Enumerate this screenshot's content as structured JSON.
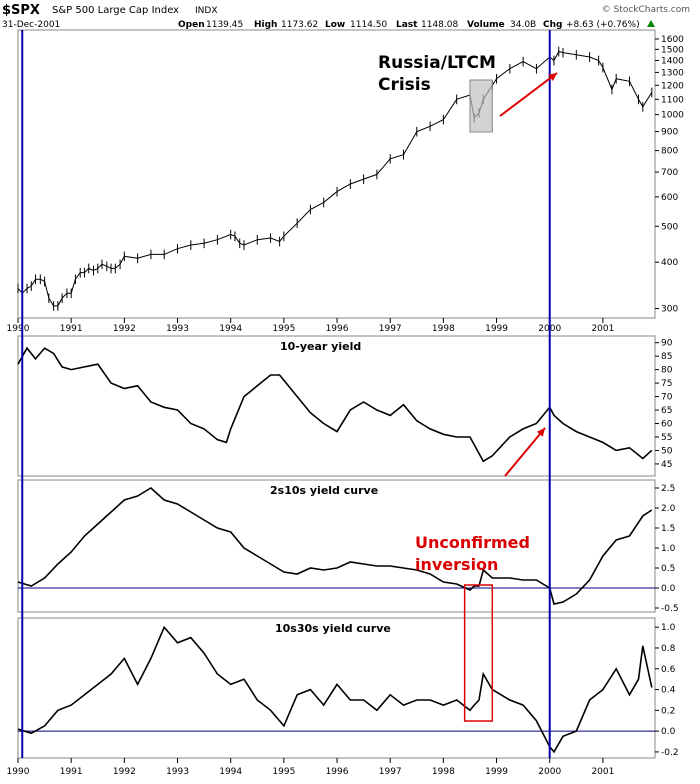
{
  "header": {
    "symbol": "$SPX",
    "name": "S&P 500 Large Cap Index",
    "exchange": "INDX",
    "date": "31-Dec-2001",
    "open_label": "Open",
    "open": "1139.45",
    "high_label": "High",
    "high": "1173.62",
    "low_label": "Low",
    "low": "1114.50",
    "last_label": "Last",
    "last": "1148.08",
    "volume_label": "Volume",
    "volume": "34.0B",
    "chg_label": "Chg",
    "chg": "+8.63 (+0.76%)",
    "credit": "© StockCharts.com"
  },
  "annotations": {
    "crisis_line1": "Russia/LTCM",
    "crisis_line2": "Crisis",
    "inversion_line1": "Unconfirmed",
    "inversion_line2": "inversion"
  },
  "colors": {
    "price": "#000000",
    "vline": "#0000aa",
    "zero_line": "#000080",
    "annotation_red": "#dd0000",
    "crisis_box": "#c0c0c0",
    "grid": "#cccccc"
  },
  "x_axis": {
    "years": [
      "1990",
      "1991",
      "1992",
      "1993",
      "1994",
      "1995",
      "1996",
      "1997",
      "1998",
      "1999",
      "2000",
      "2001"
    ]
  },
  "chart_data": [
    {
      "type": "line",
      "title": "S&P 500 Large Cap Index",
      "scale": "log",
      "ylim": [
        290,
        1650
      ],
      "y_ticks": [
        300,
        400,
        500,
        600,
        700,
        800,
        900,
        1000,
        1100,
        1200,
        1300,
        1400,
        1500,
        1600
      ],
      "x": [
        1990.0,
        1990.08,
        1990.17,
        1990.25,
        1990.33,
        1990.42,
        1990.5,
        1990.58,
        1990.67,
        1990.75,
        1990.83,
        1990.92,
        1991.0,
        1991.08,
        1991.17,
        1991.25,
        1991.33,
        1991.42,
        1991.5,
        1991.58,
        1991.67,
        1991.75,
        1991.83,
        1991.92,
        1992.0,
        1992.25,
        1992.5,
        1992.75,
        1993.0,
        1993.25,
        1993.5,
        1993.75,
        1994.0,
        1994.08,
        1994.17,
        1994.25,
        1994.5,
        1994.75,
        1994.92,
        1995.0,
        1995.25,
        1995.5,
        1995.75,
        1996.0,
        1996.25,
        1996.5,
        1996.75,
        1997.0,
        1997.25,
        1997.5,
        1997.75,
        1998.0,
        1998.25,
        1998.5,
        1998.58,
        1998.67,
        1998.75,
        1998.92,
        1999.0,
        1999.25,
        1999.5,
        1999.75,
        2000.0,
        2000.08,
        2000.17,
        2000.25,
        2000.5,
        2000.75,
        2000.92,
        2001.0,
        2001.17,
        2001.25,
        2001.5,
        2001.67,
        2001.75,
        2001.92
      ],
      "values": [
        340,
        330,
        340,
        345,
        360,
        360,
        355,
        320,
        305,
        305,
        320,
        330,
        330,
        360,
        375,
        375,
        385,
        380,
        385,
        395,
        390,
        385,
        385,
        395,
        415,
        410,
        420,
        420,
        435,
        445,
        450,
        460,
        475,
        470,
        450,
        445,
        460,
        465,
        455,
        470,
        510,
        555,
        580,
        620,
        650,
        670,
        690,
        760,
        780,
        900,
        930,
        970,
        1100,
        1130,
        980,
        1010,
        1100,
        1200,
        1250,
        1330,
        1390,
        1330,
        1430,
        1400,
        1480,
        1470,
        1450,
        1430,
        1400,
        1340,
        1170,
        1250,
        1230,
        1100,
        1050,
        1148
      ]
    },
    {
      "type": "line",
      "title": "10-year yield",
      "ylim": [
        42,
        91
      ],
      "y_ticks": [
        45,
        50,
        55,
        60,
        65,
        70,
        75,
        80,
        85,
        90
      ],
      "x": [
        1990.0,
        1990.17,
        1990.33,
        1990.5,
        1990.67,
        1990.83,
        1991.0,
        1991.25,
        1991.5,
        1991.75,
        1992.0,
        1992.25,
        1992.5,
        1992.75,
        1993.0,
        1993.25,
        1993.5,
        1993.75,
        1993.92,
        1994.0,
        1994.25,
        1994.5,
        1994.75,
        1994.92,
        1995.25,
        1995.5,
        1995.75,
        1996.0,
        1996.25,
        1996.5,
        1996.75,
        1997.0,
        1997.25,
        1997.5,
        1997.75,
        1998.0,
        1998.25,
        1998.5,
        1998.75,
        1998.92,
        1999.25,
        1999.5,
        1999.75,
        2000.0,
        2000.08,
        2000.25,
        2000.5,
        2000.75,
        2001.0,
        2001.25,
        2001.5,
        2001.75,
        2001.92
      ],
      "values": [
        82,
        88,
        84,
        88,
        86,
        81,
        80,
        81,
        82,
        75,
        73,
        74,
        68,
        66,
        65,
        60,
        58,
        54,
        53,
        58,
        70,
        74,
        78,
        78,
        70,
        64,
        60,
        57,
        65,
        68,
        65,
        63,
        67,
        61,
        58,
        56,
        55,
        55,
        46,
        48,
        55,
        58,
        60,
        66,
        63,
        60,
        57,
        55,
        53,
        50,
        51,
        47,
        50
      ]
    },
    {
      "type": "line",
      "title": "2s10s yield curve",
      "ylim": [
        -0.5,
        2.6
      ],
      "y_ticks": [
        -0.5,
        0.0,
        0.5,
        1.0,
        1.5,
        2.0,
        2.5
      ],
      "x": [
        1990.0,
        1990.25,
        1990.5,
        1990.75,
        1991.0,
        1991.25,
        1991.5,
        1991.75,
        1992.0,
        1992.25,
        1992.5,
        1992.75,
        1993.0,
        1993.25,
        1993.5,
        1993.75,
        1994.0,
        1994.25,
        1994.5,
        1994.75,
        1995.0,
        1995.25,
        1995.5,
        1995.75,
        1996.0,
        1996.25,
        1996.5,
        1996.75,
        1997.0,
        1997.25,
        1997.5,
        1997.75,
        1998.0,
        1998.25,
        1998.5,
        1998.58,
        1998.67,
        1998.75,
        1998.92,
        1999.25,
        1999.5,
        1999.75,
        2000.0,
        2000.08,
        2000.25,
        2000.5,
        2000.75,
        2001.0,
        2001.25,
        2001.5,
        2001.75,
        2001.92
      ],
      "values": [
        0.15,
        0.05,
        0.25,
        0.6,
        0.9,
        1.3,
        1.6,
        1.9,
        2.2,
        2.3,
        2.5,
        2.2,
        2.1,
        1.9,
        1.7,
        1.5,
        1.4,
        1.0,
        0.8,
        0.6,
        0.4,
        0.35,
        0.5,
        0.45,
        0.5,
        0.65,
        0.6,
        0.55,
        0.55,
        0.5,
        0.45,
        0.35,
        0.15,
        0.1,
        -0.05,
        0.05,
        0.05,
        0.45,
        0.25,
        0.25,
        0.2,
        0.2,
        0.0,
        -0.4,
        -0.35,
        -0.15,
        0.2,
        0.8,
        1.2,
        1.3,
        1.8,
        1.95
      ]
    },
    {
      "type": "line",
      "title": "10s30s yield curve",
      "ylim": [
        -0.22,
        1.05
      ],
      "y_ticks": [
        -0.2,
        0.0,
        0.2,
        0.4,
        0.6,
        0.8,
        1.0
      ],
      "x": [
        1990.0,
        1990.25,
        1990.5,
        1990.75,
        1991.0,
        1991.25,
        1991.5,
        1991.75,
        1992.0,
        1992.25,
        1992.5,
        1992.75,
        1993.0,
        1993.25,
        1993.5,
        1993.75,
        1994.0,
        1994.25,
        1994.5,
        1994.75,
        1995.0,
        1995.25,
        1995.5,
        1995.75,
        1996.0,
        1996.25,
        1996.5,
        1996.75,
        1997.0,
        1997.25,
        1997.5,
        1997.75,
        1998.0,
        1998.25,
        1998.5,
        1998.58,
        1998.67,
        1998.75,
        1998.92,
        1999.25,
        1999.5,
        1999.75,
        2000.0,
        2000.08,
        2000.25,
        2000.5,
        2000.75,
        2001.0,
        2001.25,
        2001.5,
        2001.67,
        2001.75,
        2001.92
      ],
      "values": [
        0.02,
        -0.02,
        0.05,
        0.2,
        0.25,
        0.35,
        0.45,
        0.55,
        0.7,
        0.45,
        0.7,
        1.0,
        0.85,
        0.9,
        0.75,
        0.55,
        0.45,
        0.5,
        0.3,
        0.2,
        0.05,
        0.35,
        0.4,
        0.25,
        0.45,
        0.3,
        0.3,
        0.2,
        0.35,
        0.25,
        0.3,
        0.3,
        0.25,
        0.3,
        0.2,
        0.25,
        0.3,
        0.55,
        0.4,
        0.3,
        0.25,
        0.1,
        -0.15,
        -0.2,
        -0.05,
        0.0,
        0.3,
        0.4,
        0.6,
        0.35,
        0.5,
        0.82,
        0.42
      ]
    }
  ]
}
